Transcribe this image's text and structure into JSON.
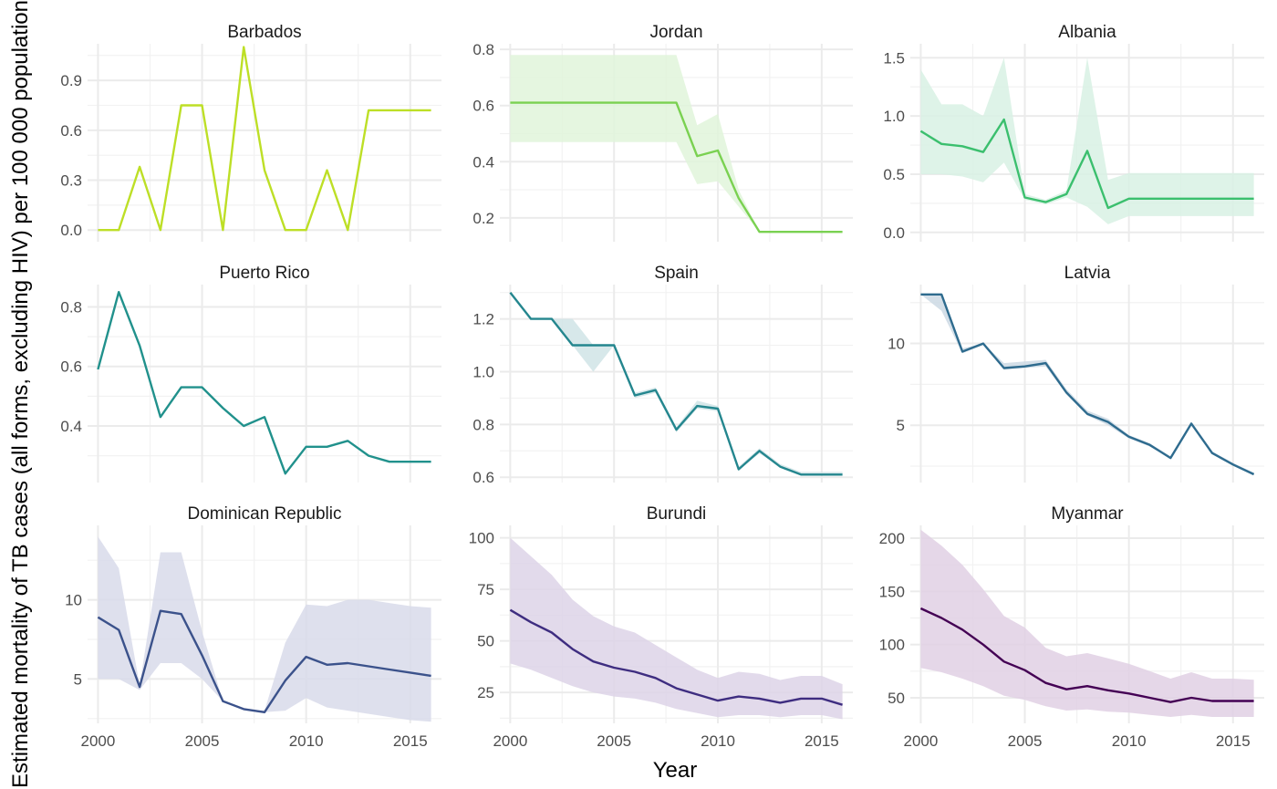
{
  "chart_data": {
    "type": "line",
    "xlabel": "Year",
    "ylabel": "Estimated mortality of TB cases (all forms, excluding HIV) per 100 000 population",
    "x_ticks": [
      2000,
      2005,
      2010,
      2015
    ],
    "xlim": [
      1999.5,
      2016.5
    ],
    "panels": [
      {
        "title": "Barbados",
        "color": "#bddf26",
        "band_color": "#d8f0a4",
        "ylim": [
          -0.07,
          1.12
        ],
        "y_ticks": [
          0.0,
          0.3,
          0.6,
          0.9
        ],
        "y_tick_labels": [
          "0.0",
          "0.3",
          "0.6",
          "0.9"
        ],
        "x": [
          2000,
          2001,
          2002,
          2003,
          2004,
          2005,
          2006,
          2007,
          2008,
          2009,
          2010,
          2011,
          2012,
          2013,
          2014,
          2015,
          2016
        ],
        "values": [
          0.0,
          0.0,
          0.38,
          0.0,
          0.75,
          0.75,
          0.0,
          1.1,
          0.36,
          0.0,
          0.0,
          0.36,
          0.0,
          0.72,
          0.72,
          0.72,
          0.72
        ]
      },
      {
        "title": "Jordan",
        "color": "#7ad151",
        "band_color": "#e0f4da",
        "ylim": [
          0.115,
          0.82
        ],
        "y_ticks": [
          0.2,
          0.4,
          0.6,
          0.8
        ],
        "y_tick_labels": [
          "0.2",
          "0.4",
          "0.6",
          "0.8"
        ],
        "x": [
          2000,
          2001,
          2002,
          2003,
          2004,
          2005,
          2006,
          2007,
          2008,
          2009,
          2010,
          2011,
          2012,
          2013,
          2014,
          2015,
          2016
        ],
        "values": [
          0.61,
          0.61,
          0.61,
          0.61,
          0.61,
          0.61,
          0.61,
          0.61,
          0.61,
          0.42,
          0.44,
          0.27,
          0.15,
          0.15,
          0.15,
          0.15,
          0.15
        ],
        "lower": [
          0.47,
          0.47,
          0.47,
          0.47,
          0.47,
          0.47,
          0.47,
          0.47,
          0.47,
          0.32,
          0.33,
          0.24,
          0.15,
          0.15,
          0.15,
          0.15,
          0.15
        ],
        "upper": [
          0.78,
          0.78,
          0.78,
          0.78,
          0.78,
          0.78,
          0.78,
          0.78,
          0.78,
          0.53,
          0.57,
          0.3,
          0.15,
          0.15,
          0.15,
          0.15,
          0.15
        ]
      },
      {
        "title": "Albania",
        "color": "#22a884",
        "line_color": "#3bbf6e",
        "band_color": "#d8f1e4",
        "ylim": [
          -0.08,
          1.62
        ],
        "y_ticks": [
          0.0,
          0.5,
          1.0,
          1.5
        ],
        "y_tick_labels": [
          "0.0",
          "0.5",
          "1.0",
          "1.5"
        ],
        "x": [
          2000,
          2001,
          2002,
          2003,
          2004,
          2005,
          2006,
          2007,
          2008,
          2009,
          2010,
          2011,
          2012,
          2013,
          2014,
          2015,
          2016
        ],
        "values": [
          0.87,
          0.76,
          0.74,
          0.69,
          0.97,
          0.3,
          0.26,
          0.33,
          0.7,
          0.21,
          0.29,
          0.29,
          0.29,
          0.29,
          0.29,
          0.29,
          0.29
        ],
        "lower": [
          0.5,
          0.5,
          0.48,
          0.43,
          0.6,
          0.28,
          0.24,
          0.3,
          0.22,
          0.07,
          0.14,
          0.14,
          0.14,
          0.14,
          0.14,
          0.14,
          0.14
        ],
        "upper": [
          1.4,
          1.1,
          1.1,
          1.0,
          1.5,
          0.33,
          0.28,
          0.36,
          1.5,
          0.45,
          0.51,
          0.51,
          0.51,
          0.51,
          0.51,
          0.51,
          0.51
        ]
      },
      {
        "title": "Puerto Rico",
        "color": "#21918c",
        "band_color": "#d2e9e8",
        "ylim": [
          0.21,
          0.875
        ],
        "y_ticks": [
          0.4,
          0.6,
          0.8
        ],
        "y_tick_labels": [
          "0.4",
          "0.6",
          "0.8"
        ],
        "x": [
          2000,
          2001,
          2002,
          2003,
          2004,
          2005,
          2006,
          2007,
          2008,
          2009,
          2010,
          2011,
          2012,
          2013,
          2014,
          2015,
          2016
        ],
        "values": [
          0.59,
          0.85,
          0.67,
          0.43,
          0.53,
          0.53,
          0.46,
          0.4,
          0.43,
          0.24,
          0.33,
          0.33,
          0.35,
          0.3,
          0.28,
          0.28,
          0.28
        ]
      },
      {
        "title": "Spain",
        "color": "#2c728e",
        "line_color": "#24868e",
        "band_color": "#d0e4e6",
        "ylim": [
          0.58,
          1.33
        ],
        "y_ticks": [
          0.6,
          0.8,
          1.0,
          1.2
        ],
        "y_tick_labels": [
          "0.6",
          "0.8",
          "1.0",
          "1.2"
        ],
        "x": [
          2000,
          2001,
          2002,
          2003,
          2004,
          2005,
          2006,
          2007,
          2008,
          2009,
          2010,
          2011,
          2012,
          2013,
          2014,
          2015,
          2016
        ],
        "values": [
          1.3,
          1.2,
          1.2,
          1.1,
          1.1,
          1.1,
          0.91,
          0.93,
          0.78,
          0.87,
          0.86,
          0.63,
          0.7,
          0.64,
          0.61,
          0.61,
          0.61
        ],
        "lower": [
          1.3,
          1.2,
          1.2,
          1.1,
          1.0,
          1.1,
          0.9,
          0.92,
          0.77,
          0.86,
          0.85,
          0.63,
          0.69,
          0.64,
          0.61,
          0.61,
          0.61
        ],
        "upper": [
          1.3,
          1.2,
          1.2,
          1.2,
          1.1,
          1.1,
          0.92,
          0.94,
          0.79,
          0.89,
          0.87,
          0.64,
          0.71,
          0.65,
          0.62,
          0.62,
          0.62
        ]
      },
      {
        "title": "Latvia",
        "color": "#31688e",
        "line_color": "#2e6b8e",
        "band_color": "#cdd9e4",
        "ylim": [
          1.5,
          13.6
        ],
        "y_ticks": [
          5,
          10
        ],
        "y_tick_labels": [
          "5",
          "10"
        ],
        "x": [
          2000,
          2001,
          2002,
          2003,
          2004,
          2005,
          2006,
          2007,
          2008,
          2009,
          2010,
          2011,
          2012,
          2013,
          2014,
          2015,
          2016
        ],
        "values": [
          13.0,
          13.0,
          9.5,
          10.0,
          8.5,
          8.6,
          8.8,
          7.0,
          5.7,
          5.2,
          4.3,
          3.8,
          3.0,
          5.1,
          3.3,
          2.6,
          2.0
        ],
        "lower": [
          13.0,
          12.0,
          9.4,
          9.9,
          8.4,
          8.5,
          8.6,
          6.9,
          5.6,
          5.0,
          4.2,
          3.7,
          3.0,
          5.1,
          3.3,
          2.6,
          2.0
        ],
        "upper": [
          13.0,
          13.0,
          9.7,
          10.0,
          8.8,
          8.9,
          9.0,
          7.2,
          5.9,
          5.4,
          4.4,
          3.9,
          3.1,
          5.1,
          3.4,
          2.7,
          2.1
        ]
      },
      {
        "title": "Dominican Republic",
        "color": "#3b528b",
        "band_color": "#d8dbea",
        "ylim": [
          2.2,
          14.7
        ],
        "y_ticks": [
          5,
          10
        ],
        "y_tick_labels": [
          "5",
          "10"
        ],
        "x": [
          2000,
          2001,
          2002,
          2003,
          2004,
          2005,
          2006,
          2007,
          2008,
          2009,
          2010,
          2011,
          2012,
          2013,
          2014,
          2015,
          2016
        ],
        "values": [
          8.9,
          8.1,
          4.5,
          9.3,
          9.1,
          6.5,
          3.6,
          3.1,
          2.9,
          4.9,
          6.4,
          5.9,
          6.0,
          5.8,
          5.6,
          5.4,
          5.2
        ],
        "lower": [
          5.0,
          5.0,
          4.3,
          6.0,
          6.0,
          5.0,
          3.6,
          3.1,
          2.9,
          3.0,
          3.8,
          3.2,
          3.0,
          2.8,
          2.6,
          2.4,
          2.3
        ],
        "upper": [
          14.0,
          12.0,
          4.6,
          13.0,
          13.0,
          8.0,
          3.6,
          3.1,
          3.0,
          7.3,
          9.7,
          9.6,
          10.0,
          10.0,
          9.8,
          9.6,
          9.5
        ]
      },
      {
        "title": "Burundi",
        "color": "#472d7b",
        "line_color": "#3e2d80",
        "band_color": "#ddd4e7",
        "ylim": [
          10,
          106
        ],
        "y_ticks": [
          25,
          50,
          75,
          100
        ],
        "y_tick_labels": [
          "25",
          "50",
          "75",
          "100"
        ],
        "x": [
          2000,
          2001,
          2002,
          2003,
          2004,
          2005,
          2006,
          2007,
          2008,
          2009,
          2010,
          2011,
          2012,
          2013,
          2014,
          2015,
          2016
        ],
        "values": [
          65,
          59,
          54,
          46,
          40,
          37,
          35,
          32,
          27,
          24,
          21,
          23,
          22,
          20,
          22,
          22,
          19
        ],
        "lower": [
          39,
          36,
          32,
          28,
          25,
          23,
          22,
          20,
          17,
          15,
          13,
          14,
          14,
          13,
          14,
          14,
          12
        ],
        "upper": [
          100,
          91,
          82,
          70,
          62,
          57,
          54,
          48,
          42,
          36,
          32,
          35,
          34,
          31,
          33,
          33,
          29
        ]
      },
      {
        "title": "Myanmar",
        "color": "#440154",
        "line_color": "#440154",
        "band_color": "#e0d0e4",
        "ylim": [
          26,
          212
        ],
        "y_ticks": [
          50,
          100,
          150,
          200
        ],
        "y_tick_labels": [
          "50",
          "100",
          "150",
          "200"
        ],
        "x": [
          2000,
          2001,
          2002,
          2003,
          2004,
          2005,
          2006,
          2007,
          2008,
          2009,
          2010,
          2011,
          2012,
          2013,
          2014,
          2015,
          2016
        ],
        "values": [
          134,
          125,
          114,
          100,
          84,
          76,
          64,
          58,
          61,
          57,
          54,
          50,
          46,
          50,
          47,
          47,
          47
        ],
        "lower": [
          78,
          74,
          68,
          61,
          52,
          48,
          42,
          38,
          39,
          37,
          36,
          34,
          32,
          34,
          32,
          32,
          32
        ],
        "upper": [
          208,
          193,
          175,
          152,
          127,
          116,
          97,
          89,
          92,
          87,
          82,
          75,
          68,
          74,
          68,
          68,
          67
        ]
      }
    ]
  }
}
